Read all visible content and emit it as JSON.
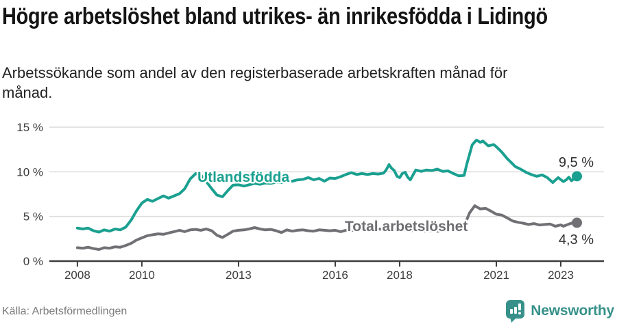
{
  "header": {
    "title": "Högre arbetslöshet bland utrikes- än inrikesfödda i Lidingö",
    "subtitle": "Arbetssökande som andel av den registerbaserade arbetskraften månad för månad."
  },
  "footer": {
    "source": "Källa: Arbetsförmedlingen",
    "brand": "Newsworthy"
  },
  "colors": {
    "accent_teal": "#1aa090",
    "neutral_gray": "#717175",
    "grid": "#dcdcdc",
    "axis_text": "#3c3c3c",
    "brand_teal": "#37918a"
  },
  "chart_data": {
    "type": "line",
    "title": "Högre arbetslöshet bland utrikes- än inrikesfödda i Lidingö",
    "subtitle": "Arbetssökande som andel av den registerbaserade arbetskraften månad för månad.",
    "xlabel": "",
    "ylabel": "",
    "grid": true,
    "legend_position": "inline-labels",
    "x_range": [
      2007.13,
      2024.34
    ],
    "y_range": [
      0,
      15
    ],
    "x_ticks": [
      {
        "value": 2008,
        "label": "2008"
      },
      {
        "value": 2010,
        "label": "2010"
      },
      {
        "value": 2013,
        "label": "2013"
      },
      {
        "value": 2016,
        "label": "2016"
      },
      {
        "value": 2018,
        "label": "2018"
      },
      {
        "value": 2021,
        "label": "2021"
      },
      {
        "value": 2023,
        "label": "2023"
      }
    ],
    "y_ticks": [
      {
        "value": 0,
        "label": "0 %"
      },
      {
        "value": 5,
        "label": "5 %"
      },
      {
        "value": 10,
        "label": "10 %"
      },
      {
        "value": 15,
        "label": "15 %"
      }
    ],
    "series": [
      {
        "name": "Utlandsfödda",
        "color": "#1aa090",
        "end_label": "9,5 %",
        "end_value": 9.5,
        "points": [
          [
            2008,
            3.7
          ],
          [
            2008.17,
            3.6
          ],
          [
            2008.33,
            3.7
          ],
          [
            2008.5,
            3.4
          ],
          [
            2008.67,
            3.25
          ],
          [
            2008.83,
            3.5
          ],
          [
            2009,
            3.35
          ],
          [
            2009.17,
            3.6
          ],
          [
            2009.33,
            3.5
          ],
          [
            2009.5,
            3.8
          ],
          [
            2009.67,
            4.6
          ],
          [
            2009.83,
            5.6
          ],
          [
            2010,
            6.5
          ],
          [
            2010.17,
            6.9
          ],
          [
            2010.33,
            6.7
          ],
          [
            2010.5,
            7.0
          ],
          [
            2010.67,
            7.3
          ],
          [
            2010.83,
            7.05
          ],
          [
            2011,
            7.3
          ],
          [
            2011.17,
            7.55
          ],
          [
            2011.33,
            8.1
          ],
          [
            2011.5,
            9.2
          ],
          [
            2011.67,
            9.8
          ],
          [
            2011.83,
            9.65
          ],
          [
            2012,
            8.9
          ],
          [
            2012.17,
            8.1
          ],
          [
            2012.33,
            7.4
          ],
          [
            2012.5,
            7.2
          ],
          [
            2012.67,
            7.9
          ],
          [
            2012.83,
            8.5
          ],
          [
            2013,
            8.55
          ],
          [
            2013.17,
            8.4
          ],
          [
            2013.33,
            8.55
          ],
          [
            2013.5,
            8.7
          ],
          [
            2013.67,
            8.6
          ],
          [
            2013.83,
            8.75
          ],
          [
            2014,
            8.7
          ],
          [
            2014.17,
            8.85
          ],
          [
            2014.33,
            8.8
          ],
          [
            2014.5,
            9.0
          ],
          [
            2014.67,
            8.95
          ],
          [
            2014.83,
            9.1
          ],
          [
            2015,
            9.15
          ],
          [
            2015.17,
            9.35
          ],
          [
            2015.33,
            9.1
          ],
          [
            2015.5,
            9.25
          ],
          [
            2015.67,
            8.95
          ],
          [
            2015.83,
            9.3
          ],
          [
            2016,
            9.25
          ],
          [
            2016.17,
            9.45
          ],
          [
            2016.33,
            9.7
          ],
          [
            2016.5,
            9.9
          ],
          [
            2016.67,
            9.7
          ],
          [
            2016.83,
            9.8
          ],
          [
            2017,
            9.7
          ],
          [
            2017.17,
            9.8
          ],
          [
            2017.33,
            9.75
          ],
          [
            2017.5,
            9.85
          ],
          [
            2017.58,
            10.2
          ],
          [
            2017.67,
            10.8
          ],
          [
            2017.75,
            10.4
          ],
          [
            2017.83,
            10.15
          ],
          [
            2017.92,
            9.5
          ],
          [
            2018,
            9.35
          ],
          [
            2018.08,
            9.8
          ],
          [
            2018.17,
            9.95
          ],
          [
            2018.25,
            9.4
          ],
          [
            2018.33,
            9.1
          ],
          [
            2018.5,
            10.2
          ],
          [
            2018.67,
            10.05
          ],
          [
            2018.83,
            10.2
          ],
          [
            2019,
            10.15
          ],
          [
            2019.17,
            10.3
          ],
          [
            2019.33,
            10.05
          ],
          [
            2019.5,
            10.1
          ],
          [
            2019.67,
            9.8
          ],
          [
            2019.83,
            9.55
          ],
          [
            2020,
            9.6
          ],
          [
            2020.08,
            10.8
          ],
          [
            2020.25,
            13.0
          ],
          [
            2020.38,
            13.55
          ],
          [
            2020.5,
            13.3
          ],
          [
            2020.58,
            13.45
          ],
          [
            2020.75,
            12.9
          ],
          [
            2020.92,
            13.05
          ],
          [
            2021,
            12.8
          ],
          [
            2021.17,
            12.2
          ],
          [
            2021.33,
            11.5
          ],
          [
            2021.5,
            10.9
          ],
          [
            2021.58,
            10.6
          ],
          [
            2021.75,
            10.3
          ],
          [
            2021.92,
            9.95
          ],
          [
            2022.08,
            9.7
          ],
          [
            2022.25,
            9.5
          ],
          [
            2022.42,
            9.65
          ],
          [
            2022.58,
            9.35
          ],
          [
            2022.75,
            8.8
          ],
          [
            2022.92,
            9.35
          ],
          [
            2023.08,
            8.9
          ],
          [
            2023.17,
            9.1
          ],
          [
            2023.25,
            9.4
          ],
          [
            2023.33,
            9.0
          ],
          [
            2023.5,
            9.5
          ]
        ]
      },
      {
        "name": "Total arbetslöshet",
        "color": "#717175",
        "end_label": "4,3 %",
        "end_value": 4.3,
        "points": [
          [
            2008,
            1.5
          ],
          [
            2008.17,
            1.45
          ],
          [
            2008.33,
            1.55
          ],
          [
            2008.5,
            1.4
          ],
          [
            2008.67,
            1.3
          ],
          [
            2008.83,
            1.5
          ],
          [
            2009,
            1.45
          ],
          [
            2009.17,
            1.6
          ],
          [
            2009.33,
            1.55
          ],
          [
            2009.5,
            1.75
          ],
          [
            2009.67,
            2.0
          ],
          [
            2009.83,
            2.35
          ],
          [
            2010,
            2.6
          ],
          [
            2010.17,
            2.85
          ],
          [
            2010.33,
            2.95
          ],
          [
            2010.5,
            3.05
          ],
          [
            2010.67,
            3.0
          ],
          [
            2010.83,
            3.15
          ],
          [
            2011,
            3.3
          ],
          [
            2011.17,
            3.45
          ],
          [
            2011.33,
            3.3
          ],
          [
            2011.5,
            3.5
          ],
          [
            2011.67,
            3.55
          ],
          [
            2011.83,
            3.45
          ],
          [
            2012,
            3.6
          ],
          [
            2012.17,
            3.4
          ],
          [
            2012.33,
            2.9
          ],
          [
            2012.5,
            2.65
          ],
          [
            2012.67,
            3.0
          ],
          [
            2012.83,
            3.35
          ],
          [
            2013,
            3.45
          ],
          [
            2013.17,
            3.5
          ],
          [
            2013.33,
            3.6
          ],
          [
            2013.5,
            3.75
          ],
          [
            2013.67,
            3.6
          ],
          [
            2013.83,
            3.5
          ],
          [
            2014,
            3.55
          ],
          [
            2014.17,
            3.4
          ],
          [
            2014.33,
            3.2
          ],
          [
            2014.5,
            3.5
          ],
          [
            2014.67,
            3.35
          ],
          [
            2014.83,
            3.45
          ],
          [
            2015,
            3.5
          ],
          [
            2015.17,
            3.4
          ],
          [
            2015.33,
            3.35
          ],
          [
            2015.5,
            3.5
          ],
          [
            2015.67,
            3.45
          ],
          [
            2015.83,
            3.4
          ],
          [
            2016,
            3.45
          ],
          [
            2016.17,
            3.3
          ],
          [
            2016.33,
            3.45
          ],
          [
            2016.5,
            3.4
          ],
          [
            2016.67,
            3.55
          ],
          [
            2016.83,
            3.5
          ],
          [
            2017,
            3.65
          ],
          [
            2017.17,
            3.55
          ],
          [
            2017.33,
            3.6
          ],
          [
            2017.5,
            3.55
          ],
          [
            2017.67,
            3.6
          ],
          [
            2017.83,
            3.5
          ],
          [
            2018,
            3.45
          ],
          [
            2018.17,
            3.5
          ],
          [
            2018.33,
            3.4
          ],
          [
            2018.5,
            3.45
          ],
          [
            2018.67,
            3.4
          ],
          [
            2018.83,
            3.35
          ],
          [
            2019,
            3.4
          ],
          [
            2019.17,
            3.35
          ],
          [
            2019.33,
            3.4
          ],
          [
            2019.5,
            3.45
          ],
          [
            2019.67,
            3.4
          ],
          [
            2019.83,
            3.5
          ],
          [
            2020,
            3.8
          ],
          [
            2020.08,
            4.6
          ],
          [
            2020.17,
            5.4
          ],
          [
            2020.33,
            6.2
          ],
          [
            2020.5,
            5.85
          ],
          [
            2020.67,
            5.9
          ],
          [
            2020.83,
            5.6
          ],
          [
            2021,
            5.25
          ],
          [
            2021.17,
            5.15
          ],
          [
            2021.33,
            4.85
          ],
          [
            2021.5,
            4.5
          ],
          [
            2021.67,
            4.35
          ],
          [
            2021.83,
            4.25
          ],
          [
            2022,
            4.1
          ],
          [
            2022.17,
            4.2
          ],
          [
            2022.33,
            4.05
          ],
          [
            2022.5,
            4.1
          ],
          [
            2022.67,
            4.15
          ],
          [
            2022.83,
            3.9
          ],
          [
            2023,
            4.05
          ],
          [
            2023.08,
            3.9
          ],
          [
            2023.25,
            4.15
          ],
          [
            2023.42,
            4.35
          ],
          [
            2023.5,
            4.3
          ]
        ]
      }
    ]
  }
}
